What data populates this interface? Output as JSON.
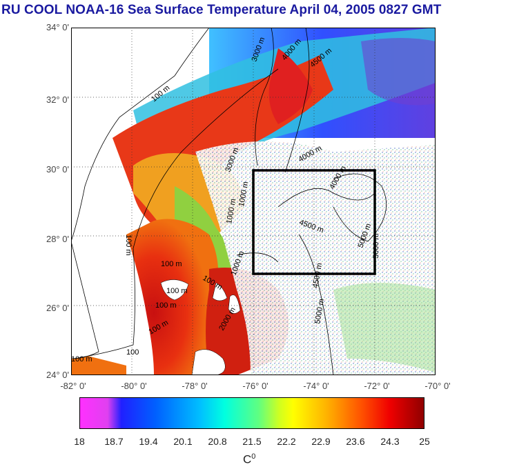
{
  "title": "RU COOL  NOAA-16 Sea Surface Temperature April 04, 2005 0827 GMT",
  "y_axis": [
    "34° 0'",
    "32° 0'",
    "30° 0'",
    "28° 0'",
    "26° 0'",
    "24° 0'"
  ],
  "x_axis": [
    "-82° 0'",
    "-80° 0'",
    "-78° 0'",
    "-76° 0'",
    "-74° 0'",
    "-72° 0'",
    "-70° 0'"
  ],
  "colorbar": {
    "ticks": [
      "18",
      "18.7",
      "19.4",
      "20.1",
      "20.8",
      "21.5",
      "22.2",
      "22.9",
      "23.6",
      "24.3",
      "25"
    ],
    "unit": "C",
    "unit_sup": "0",
    "range": [
      18,
      25
    ]
  },
  "contours": {
    "l1": "100 m",
    "l2": "100 m",
    "l3": "100 m",
    "l4": "100 m",
    "l5": "100 m",
    "l6": "100 m",
    "l7": "100 m",
    "l8": "3000 m",
    "l9": "4000 m",
    "l10": "4500 m",
    "l11": "3000 m",
    "l12": "4000 m",
    "l13": "4000 m",
    "l14": "1000 m",
    "l15": "1000 m",
    "l16": "4500 m",
    "l17": "5000 m",
    "l18": "5000 m",
    "l19": "4500 m",
    "l20": "1000 m",
    "l21": "5000 m",
    "l22": "2000 m",
    "l23": "100 m",
    "l24": "100"
  },
  "colors": {
    "title": "#1a1aa0",
    "land": "#ffffff",
    "box": "#000000"
  }
}
